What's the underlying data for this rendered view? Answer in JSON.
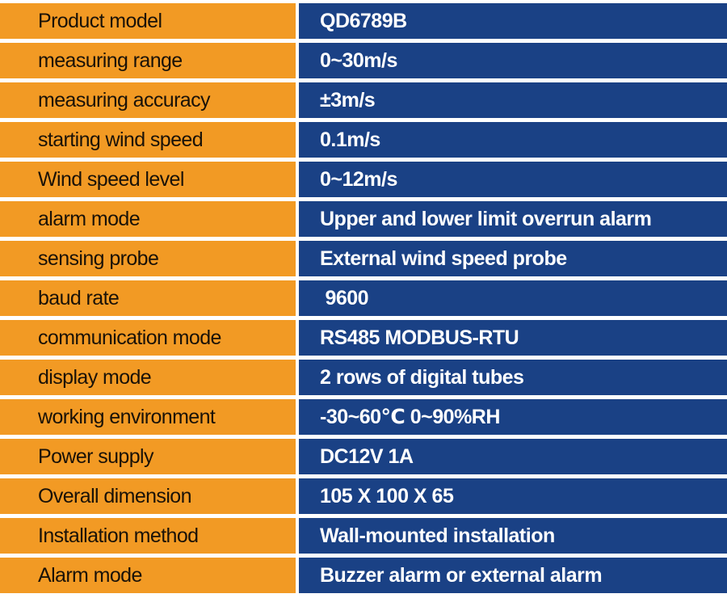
{
  "colors": {
    "label_background": "#F29A24",
    "value_background": "#1A4185",
    "label_text": "#1a1208",
    "value_text": "#ffffff"
  },
  "specs": [
    {
      "label": "Product model",
      "value": "QD6789B"
    },
    {
      "label": "measuring range",
      "value": "0~30m/s"
    },
    {
      "label": "measuring accuracy",
      "value": "±3m/s"
    },
    {
      "label": "starting wind speed",
      "value": "0.1m/s"
    },
    {
      "label": "Wind speed level",
      "value": "0~12m/s"
    },
    {
      "label": "alarm mode",
      "value": "Upper and lower limit overrun alarm"
    },
    {
      "label": "sensing probe",
      "value": "External wind speed probe"
    },
    {
      "label": "baud rate",
      "value": " 9600"
    },
    {
      "label": "communication mode",
      "value": "RS485 MODBUS-RTU"
    },
    {
      "label": "display mode",
      "value": "2 rows of digital tubes"
    },
    {
      "label": "working environment",
      "value": "-30~60℃ 0~90%RH"
    },
    {
      "label": "Power supply",
      "value": "DC12V 1A"
    },
    {
      "label": "Overall dimension",
      "value": "105 X 100 X 65"
    },
    {
      "label": "Installation method",
      "value": "Wall-mounted installation"
    },
    {
      "label": "Alarm mode",
      "value": "Buzzer alarm or external alarm"
    }
  ]
}
